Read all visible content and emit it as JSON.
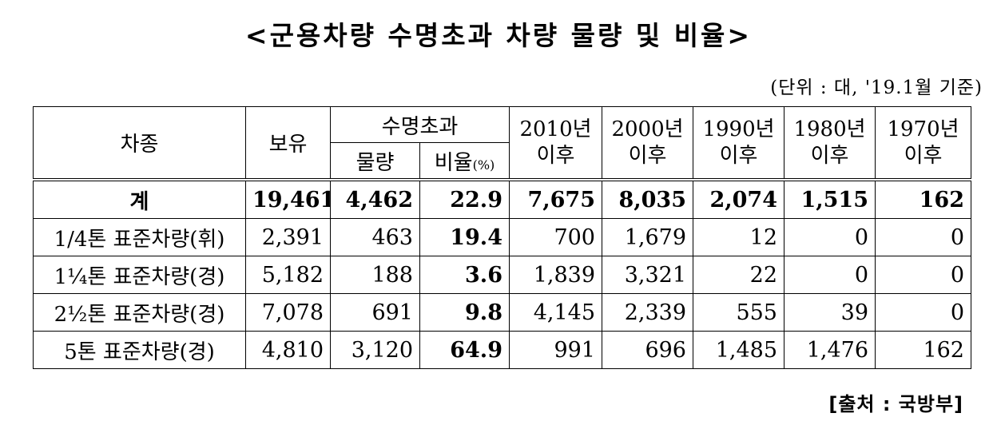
{
  "title": "<군용차량 수명초과 차량 물량 및 비율>",
  "unit": "(단위 : 대, '19.1월 기준)",
  "headers": {
    "type": "차종",
    "hold": "보유",
    "over": "수명초과",
    "qty": "물량",
    "ratio": "비율",
    "ratio_unit": "(%)",
    "years": [
      {
        "year": "2010년",
        "after": "이후"
      },
      {
        "year": "2000년",
        "after": "이후"
      },
      {
        "year": "1990년",
        "after": "이후"
      },
      {
        "year": "1980년",
        "after": "이후"
      },
      {
        "year": "1970년",
        "after": "이후"
      }
    ]
  },
  "rows": [
    {
      "name": "계",
      "hold": "19,461",
      "qty": "4,462",
      "ratio": "22.9",
      "y2010": "7,675",
      "y2000": "8,035",
      "y1990": "2,074",
      "y1980": "1,515",
      "y1970": "162"
    },
    {
      "name": "1/4톤 표준차량(휘)",
      "hold": "2,391",
      "qty": "463",
      "ratio": "19.4",
      "y2010": "700",
      "y2000": "1,679",
      "y1990": "12",
      "y1980": "0",
      "y1970": "0"
    },
    {
      "name": "1¼톤 표준차량(경)",
      "hold": "5,182",
      "qty": "188",
      "ratio": "3.6",
      "y2010": "1,839",
      "y2000": "3,321",
      "y1990": "22",
      "y1980": "0",
      "y1970": "0"
    },
    {
      "name": "2½톤 표준차량(경)",
      "hold": "7,078",
      "qty": "691",
      "ratio": "9.8",
      "y2010": "4,145",
      "y2000": "2,339",
      "y1990": "555",
      "y1980": "39",
      "y1970": "0"
    },
    {
      "name": "5톤 표준차량(경)",
      "hold": "4,810",
      "qty": "3,120",
      "ratio": "64.9",
      "y2010": "991",
      "y2000": "696",
      "y1990": "1,485",
      "y1980": "1,476",
      "y1970": "162"
    }
  ],
  "source": "[출처 : 국방부]"
}
